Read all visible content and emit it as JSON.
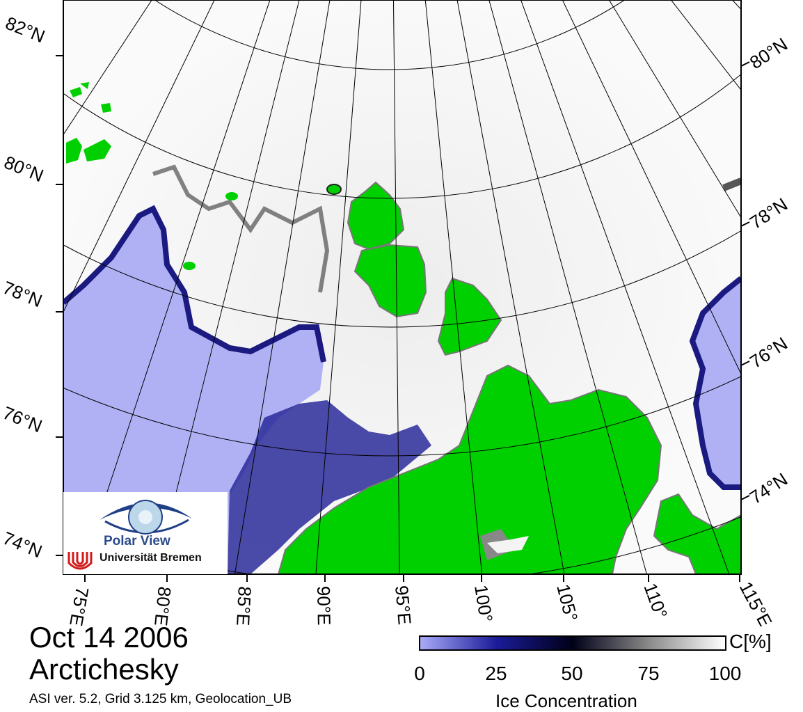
{
  "map": {
    "lat_labels_left": [
      "82°N",
      "80°N",
      "78°N",
      "76°N",
      "74°N"
    ],
    "lat_labels_right": [
      "80°N",
      "78°N",
      "76°N",
      "74°N"
    ],
    "lon_labels": [
      "75°E",
      "80°E",
      "85°E",
      "90°E",
      "95°E",
      "100°",
      "105°",
      "110°",
      "115°E"
    ],
    "colors": {
      "open_water": "#b0b0f5",
      "land": "#00d000",
      "ice": "#f2f2f2",
      "grid": "#000000"
    }
  },
  "logo": {
    "title": "Polar View",
    "university": "Universität Bremen"
  },
  "info": {
    "date": "Oct 14 2006",
    "region": "Arctichesky",
    "meta": "ASI ver. 5.2,  Grid 3.125 km, Geolocation_UB"
  },
  "colorbar": {
    "unit": "C[%]",
    "ticks": [
      "0",
      "25",
      "50",
      "75",
      "100"
    ],
    "title": "Ice Concentration",
    "range": [
      0,
      100
    ]
  }
}
